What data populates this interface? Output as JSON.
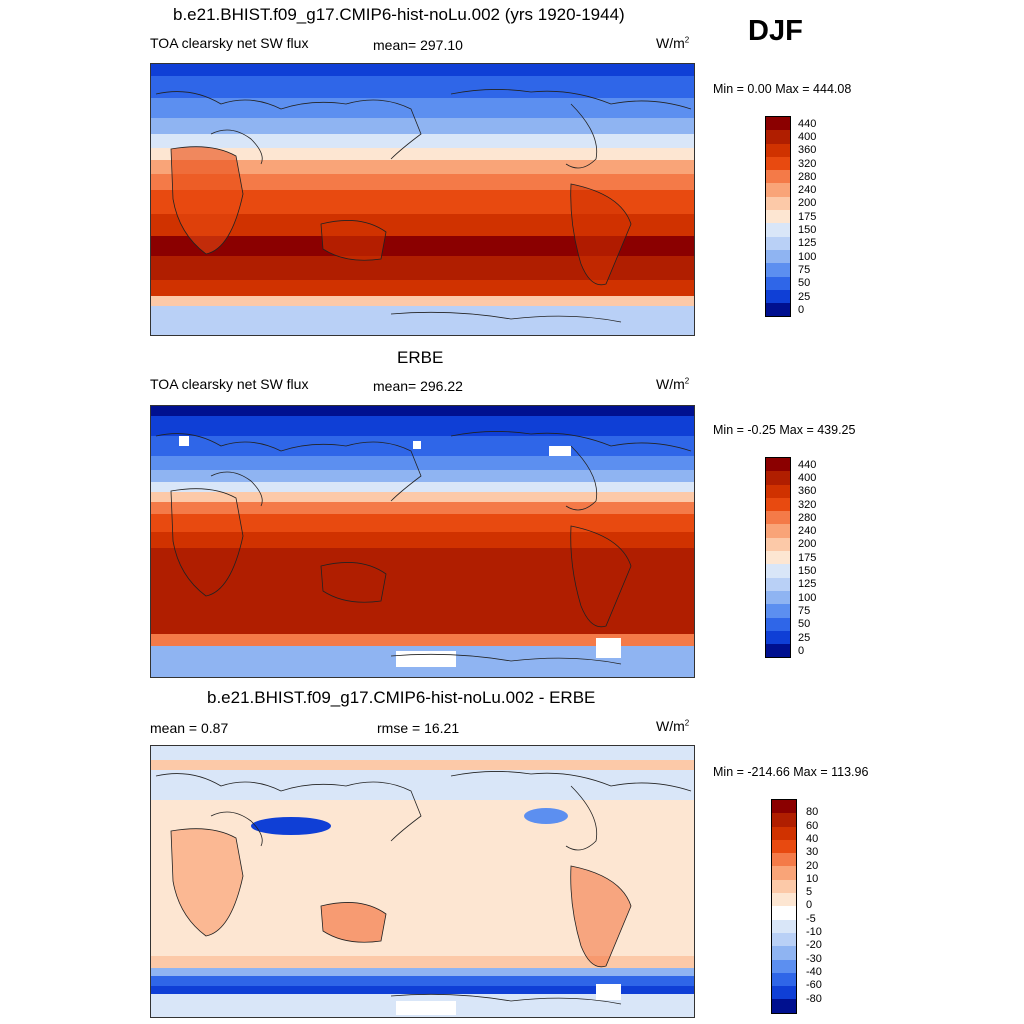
{
  "season": "DJF",
  "panels": [
    {
      "title": "b.e21.BHIST.f09_g17.CMIP6-hist-noLu.002 (yrs 1920-1944)",
      "left_label": "TOA clearsky net SW flux",
      "center_label": "mean= 297.10",
      "units": "W/m",
      "units_sup": "2",
      "minmax": "Min =   0.00 Max = 444.08",
      "colorbar_labels": [
        "440",
        "400",
        "360",
        "320",
        "280",
        "240",
        "200",
        "175",
        "150",
        "125",
        "100",
        "75",
        "50",
        "25",
        "0"
      ],
      "colorbar_colors": [
        "#8b0000",
        "#b01e00",
        "#d03200",
        "#e84a10",
        "#f47a48",
        "#f9a478",
        "#fcc9a8",
        "#fde6d2",
        "#d9e6f8",
        "#b9d0f6",
        "#8fb4f2",
        "#5c8ff0",
        "#2f66e8",
        "#0f3fd6",
        "#00108f"
      ]
    },
    {
      "title": "ERBE",
      "left_label": "TOA clearsky net SW flux",
      "center_label": "mean= 296.22",
      "units": "W/m",
      "units_sup": "2",
      "minmax": "Min =  -0.25 Max = 439.25",
      "colorbar_labels": [
        "440",
        "400",
        "360",
        "320",
        "280",
        "240",
        "200",
        "175",
        "150",
        "125",
        "100",
        "75",
        "50",
        "25",
        "0"
      ],
      "colorbar_colors": [
        "#8b0000",
        "#b01e00",
        "#d03200",
        "#e84a10",
        "#f47a48",
        "#f9a478",
        "#fcc9a8",
        "#fde6d2",
        "#d9e6f8",
        "#b9d0f6",
        "#8fb4f2",
        "#5c8ff0",
        "#2f66e8",
        "#0f3fd6",
        "#00108f"
      ]
    },
    {
      "title": "b.e21.BHIST.f09_g17.CMIP6-hist-noLu.002 - ERBE",
      "left_label": "mean =   0.87",
      "center_label": "rmse =  16.21",
      "units": "W/m",
      "units_sup": "2",
      "minmax": "Min = -214.66 Max = 113.96",
      "colorbar_labels": [
        "80",
        "60",
        "40",
        "30",
        "20",
        "10",
        "5",
        "0",
        "-5",
        "-10",
        "-20",
        "-30",
        "-40",
        "-60",
        "-80"
      ],
      "colorbar_colors": [
        "#8b0000",
        "#b01e00",
        "#d03200",
        "#e84a10",
        "#f47a48",
        "#f9a478",
        "#fcc9a8",
        "#fde6d2",
        "#ffffff",
        "#d9e6f8",
        "#b9d0f6",
        "#8fb4f2",
        "#5c8ff0",
        "#2f66e8",
        "#0f3fd6",
        "#00108f"
      ]
    }
  ]
}
